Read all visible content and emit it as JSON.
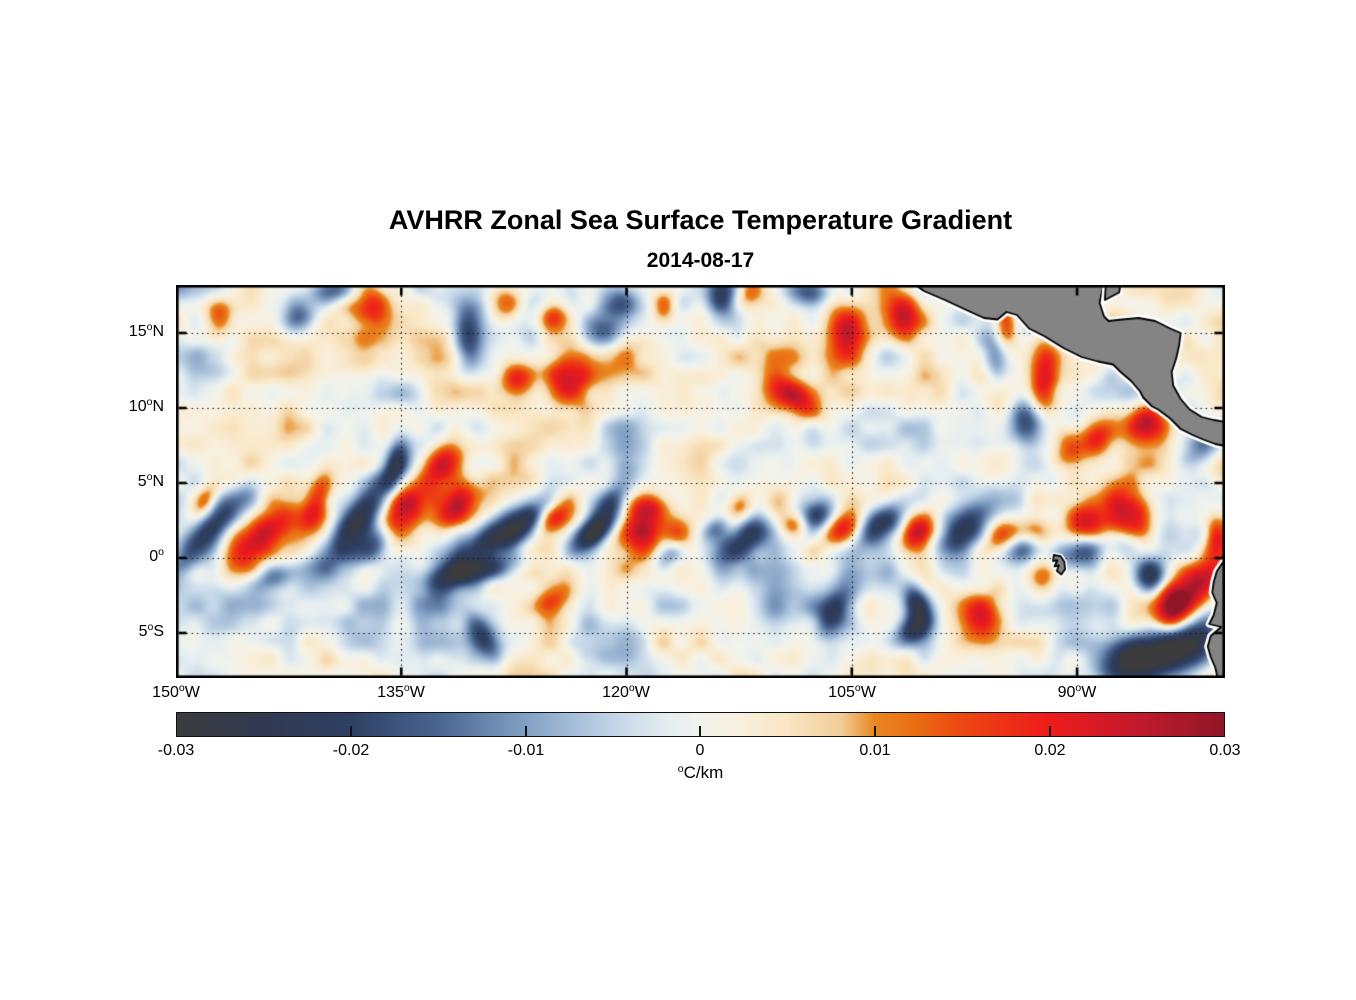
{
  "title": "AVHRR Zonal Sea Surface Temperature Gradient",
  "date": "2014-08-17",
  "axes": {
    "x": {
      "ticks": [
        {
          "num": "150",
          "sup": "o",
          "dir": "W",
          "lon": -150
        },
        {
          "num": "135",
          "sup": "o",
          "dir": "W",
          "lon": -135
        },
        {
          "num": "120",
          "sup": "o",
          "dir": "W",
          "lon": -120
        },
        {
          "num": "105",
          "sup": "o",
          "dir": "W",
          "lon": -105
        },
        {
          "num": "90",
          "sup": "o",
          "dir": "W",
          "lon": -90
        }
      ]
    },
    "y": {
      "ticks": [
        {
          "num": "15",
          "sup": "o",
          "dir": "N",
          "lat": 15
        },
        {
          "num": "10",
          "sup": "o",
          "dir": "N",
          "lat": 10
        },
        {
          "num": "5",
          "sup": "o",
          "dir": "N",
          "lat": 5
        },
        {
          "num": "0",
          "sup": "o",
          "dir": "",
          "lat": 0
        },
        {
          "num": "5",
          "sup": "o",
          "dir": "S",
          "lat": -5
        }
      ]
    }
  },
  "colorbar": {
    "ticks": [
      "-0.03",
      "-0.02",
      "-0.01",
      "0",
      "0.01",
      "0.02",
      "0.03"
    ],
    "unit_sup": "o",
    "unit": "C/km",
    "min": -0.03,
    "max": 0.03
  },
  "chart_data": {
    "type": "heatmap",
    "title": "AVHRR Zonal Sea Surface Temperature Gradient",
    "subtitle": "2014-08-17",
    "value_units": "degC/km",
    "lon_range": [
      -150,
      -80.15
    ],
    "lat_range": [
      -8.0,
      18.2
    ],
    "lon_ticks": [
      -150,
      -135,
      -120,
      -105,
      -90
    ],
    "lat_ticks": [
      15,
      10,
      5,
      0,
      -5
    ],
    "grid": "dotted black lines at tick latitudes and longitudes",
    "value_range": [
      -0.03,
      0.03
    ],
    "colormap_stops": [
      [
        -0.03,
        "#3b3b3d"
      ],
      [
        -0.025,
        "#303950"
      ],
      [
        -0.02,
        "#2e4064"
      ],
      [
        -0.015,
        "#4a6590"
      ],
      [
        -0.01,
        "#82a0c4"
      ],
      [
        -0.005,
        "#c2d5e7"
      ],
      [
        -0.002,
        "#e4edf0"
      ],
      [
        0,
        "#f1f3ec"
      ],
      [
        0.002,
        "#f8f0df"
      ],
      [
        0.005,
        "#f9e6c3"
      ],
      [
        0.008,
        "#f2cd9a"
      ],
      [
        0.01,
        "#e9871e"
      ],
      [
        0.0125,
        "#ea6b13"
      ],
      [
        0.015,
        "#ec4611"
      ],
      [
        0.02,
        "#ee1b1b"
      ],
      [
        0.025,
        "#c31a2d"
      ],
      [
        0.03,
        "#911627"
      ]
    ],
    "land_color": "#848484",
    "coast_halo_color": "#ffffff",
    "land_polygons": [
      [
        [
          -101.6,
          18.8
        ],
        [
          -100.2,
          17.8
        ],
        [
          -98.8,
          17.2
        ],
        [
          -97.3,
          16.5
        ],
        [
          -96.2,
          16.0
        ],
        [
          -95.3,
          15.9
        ],
        [
          -94.7,
          16.4
        ],
        [
          -94.0,
          16.2
        ],
        [
          -93.2,
          15.3
        ],
        [
          -92.2,
          14.8
        ],
        [
          -90.9,
          14.0
        ],
        [
          -89.7,
          13.4
        ],
        [
          -88.6,
          13.1
        ],
        [
          -87.6,
          12.9
        ],
        [
          -87.1,
          12.4
        ],
        [
          -86.4,
          11.8
        ],
        [
          -85.8,
          11.1
        ],
        [
          -85.6,
          10.7
        ],
        [
          -85.0,
          10.1
        ],
        [
          -84.6,
          9.9
        ],
        [
          -83.8,
          9.3
        ],
        [
          -83.1,
          8.6
        ],
        [
          -82.3,
          8.2
        ],
        [
          -81.6,
          7.9
        ],
        [
          -80.8,
          7.6
        ],
        [
          -80.3,
          7.5
        ],
        [
          -79.7,
          7.6
        ],
        [
          -79.7,
          9.0
        ],
        [
          -80.9,
          9.2
        ],
        [
          -81.7,
          9.4
        ],
        [
          -82.5,
          9.9
        ],
        [
          -83.1,
          10.6
        ],
        [
          -83.6,
          11.5
        ],
        [
          -83.7,
          12.4
        ],
        [
          -83.4,
          13.3
        ],
        [
          -83.2,
          14.2
        ],
        [
          -83.1,
          15.0
        ],
        [
          -83.8,
          15.3
        ],
        [
          -84.8,
          15.8
        ],
        [
          -85.9,
          16.0
        ],
        [
          -87.0,
          15.9
        ],
        [
          -87.9,
          15.8
        ],
        [
          -88.2,
          16.1
        ],
        [
          -88.5,
          17.0
        ],
        [
          -88.3,
          18.0
        ],
        [
          -88.45,
          18.8
        ]
      ],
      [
        [
          -88.05,
          18.8
        ],
        [
          -88.15,
          17.2
        ],
        [
          -87.2,
          17.7
        ],
        [
          -87.0,
          18.8
        ]
      ],
      [
        [
          -79.7,
          -0.1
        ],
        [
          -80.3,
          -0.3
        ],
        [
          -80.7,
          -0.9
        ],
        [
          -80.9,
          -1.6
        ],
        [
          -81.0,
          -2.3
        ],
        [
          -80.7,
          -3.0
        ],
        [
          -80.9,
          -3.8
        ],
        [
          -81.2,
          -4.4
        ],
        [
          -80.4,
          -4.6
        ],
        [
          -81.1,
          -5.2
        ],
        [
          -81.3,
          -5.9
        ],
        [
          -81.1,
          -6.6
        ],
        [
          -80.8,
          -7.3
        ],
        [
          -80.6,
          -8.2
        ],
        [
          -80.5,
          -8.6
        ],
        [
          -79.7,
          -8.6
        ]
      ],
      [
        [
          -91.55,
          0.2
        ],
        [
          -91.1,
          0.12
        ],
        [
          -90.85,
          -0.25
        ],
        [
          -90.8,
          -0.75
        ],
        [
          -91.05,
          -1.1
        ],
        [
          -91.35,
          -0.85
        ],
        [
          -91.2,
          -0.5
        ],
        [
          -91.5,
          -0.55
        ],
        [
          -91.3,
          -0.15
        ],
        [
          -91.6,
          -0.2
        ]
      ]
    ],
    "features_format": [
      "lon_deg",
      "lat_deg",
      "amplitude_degC_per_km",
      "sigma_along_deg",
      "sigma_across_deg",
      "rotation_deg_ccw_from_east"
    ],
    "features": [
      [
        -147.8,
        1.8,
        -0.026,
        2.6,
        0.75,
        48
      ],
      [
        -148.1,
        3.8,
        0.016,
        0.9,
        0.5,
        60
      ],
      [
        -144.6,
        1.2,
        0.02,
        2.2,
        0.8,
        45
      ],
      [
        -143.4,
        -1.3,
        -0.013,
        1.3,
        0.6,
        20
      ],
      [
        -140.7,
        3.6,
        0.02,
        1.6,
        0.6,
        70
      ],
      [
        -137.9,
        2.6,
        -0.028,
        2.8,
        0.8,
        52
      ],
      [
        -136.6,
        0.9,
        -0.02,
        1.6,
        0.7,
        40
      ],
      [
        -135.2,
        2.4,
        0.025,
        1.5,
        0.8,
        60
      ],
      [
        -135.0,
        3.9,
        0.014,
        1.0,
        0.6,
        0
      ],
      [
        -132.3,
        6.2,
        0.022,
        1.4,
        0.8,
        55
      ],
      [
        -135.4,
        6.3,
        -0.018,
        1.1,
        0.5,
        75
      ],
      [
        -131.3,
        3.4,
        0.018,
        1.4,
        0.7,
        50
      ],
      [
        -129.3,
        1.0,
        -0.028,
        2.6,
        0.85,
        40
      ],
      [
        -129.8,
        -0.9,
        -0.024,
        2.0,
        0.6,
        10
      ],
      [
        -129.5,
        -5.4,
        -0.016,
        1.2,
        0.6,
        -60
      ],
      [
        -126.9,
        2.2,
        -0.016,
        1.4,
        0.6,
        45
      ],
      [
        -124.6,
        2.8,
        0.014,
        1.1,
        0.6,
        50
      ],
      [
        -124.9,
        -2.8,
        0.012,
        1.3,
        0.7,
        30
      ],
      [
        -121.3,
        3.1,
        -0.026,
        1.7,
        0.7,
        55
      ],
      [
        -122.4,
        1.5,
        -0.02,
        1.3,
        0.6,
        35
      ],
      [
        -119.0,
        2.0,
        0.022,
        1.1,
        1.3,
        0
      ],
      [
        -118.4,
        3.4,
        0.012,
        0.8,
        0.6,
        0
      ],
      [
        -116.5,
        1.4,
        0.016,
        0.7,
        0.9,
        0
      ],
      [
        -117.2,
        0.3,
        -0.02,
        0.8,
        0.6,
        30
      ],
      [
        -113.9,
        2.2,
        -0.014,
        1.0,
        0.5,
        40
      ],
      [
        -111.4,
        1.8,
        -0.027,
        2.2,
        0.8,
        35
      ],
      [
        -112.6,
        3.2,
        0.016,
        1.0,
        0.6,
        45
      ],
      [
        -110.0,
        3.0,
        0.02,
        1.2,
        0.7,
        50
      ],
      [
        -108.8,
        2.2,
        0.018,
        0.8,
        0.6,
        0
      ],
      [
        -107.4,
        2.6,
        -0.022,
        1.1,
        0.7,
        45
      ],
      [
        -106.1,
        -3.6,
        -0.02,
        1.4,
        0.7,
        60
      ],
      [
        -105.5,
        2.0,
        0.02,
        1.0,
        0.7,
        40
      ],
      [
        -103.0,
        2.3,
        -0.024,
        1.5,
        0.8,
        40
      ],
      [
        -100.6,
        1.8,
        0.022,
        1.1,
        0.7,
        55
      ],
      [
        -100.6,
        -3.2,
        -0.024,
        1.0,
        0.6,
        -70
      ],
      [
        -100.9,
        -4.9,
        -0.02,
        1.0,
        0.6,
        40
      ],
      [
        -97.6,
        1.8,
        -0.022,
        1.6,
        0.8,
        45
      ],
      [
        -96.3,
        -4.0,
        0.02,
        0.9,
        1.1,
        0
      ],
      [
        -95.0,
        1.5,
        0.018,
        0.9,
        0.7,
        40
      ],
      [
        -93.3,
        0.8,
        -0.02,
        1.0,
        0.7,
        30
      ],
      [
        -92.7,
        1.5,
        0.02,
        0.8,
        0.8,
        0
      ],
      [
        -92.4,
        -1.3,
        0.02,
        0.7,
        1.0,
        0
      ],
      [
        -89.6,
        0.4,
        -0.022,
        1.2,
        0.8,
        20
      ],
      [
        -89.3,
        2.4,
        0.02,
        0.9,
        0.9,
        0
      ],
      [
        -87.0,
        3.0,
        0.016,
        0.8,
        1.2,
        0
      ],
      [
        -86.7,
        0.8,
        -0.014,
        0.8,
        0.8,
        0
      ],
      [
        -85.8,
        2.5,
        0.018,
        0.7,
        1.2,
        0
      ],
      [
        -85.0,
        -1.3,
        -0.02,
        0.9,
        0.9,
        0
      ],
      [
        -147.2,
        16.2,
        0.016,
        0.7,
        0.9,
        0
      ],
      [
        -141.7,
        16.3,
        -0.018,
        1.0,
        0.8,
        60
      ],
      [
        -139.5,
        17.9,
        -0.016,
        1.1,
        0.6,
        0
      ],
      [
        -137.2,
        16.9,
        0.02,
        0.9,
        1.1,
        0
      ],
      [
        -130.6,
        14.8,
        -0.018,
        0.7,
        1.5,
        0
      ],
      [
        -128.0,
        16.9,
        0.016,
        0.8,
        0.9,
        0
      ],
      [
        -127.3,
        12.0,
        0.018,
        0.8,
        0.8,
        0
      ],
      [
        -124.9,
        16.2,
        0.018,
        0.7,
        0.9,
        0
      ],
      [
        -124.0,
        11.7,
        0.026,
        1.0,
        1.2,
        0
      ],
      [
        -121.6,
        15.2,
        -0.018,
        0.9,
        1.0,
        0
      ],
      [
        -120.3,
        17.3,
        -0.016,
        0.8,
        0.9,
        0
      ],
      [
        -117.5,
        16.8,
        0.014,
        0.6,
        0.8,
        0
      ],
      [
        -113.5,
        17.6,
        -0.018,
        0.8,
        1.0,
        0
      ],
      [
        -111.8,
        17.9,
        0.016,
        0.8,
        0.8,
        0
      ],
      [
        -108.6,
        10.6,
        0.018,
        1.5,
        0.7,
        -40
      ],
      [
        -107.8,
        17.8,
        -0.018,
        1.0,
        0.7,
        0
      ],
      [
        -105.3,
        15.0,
        0.018,
        0.8,
        1.2,
        0
      ],
      [
        -101.5,
        16.2,
        0.02,
        0.8,
        1.0,
        0
      ],
      [
        -94.7,
        15.6,
        0.024,
        0.6,
        1.2,
        0
      ],
      [
        -95.3,
        13.8,
        -0.02,
        0.7,
        1.4,
        0
      ],
      [
        -92.1,
        12.0,
        0.022,
        0.7,
        2.0,
        0
      ],
      [
        -93.1,
        9.2,
        -0.016,
        0.8,
        1.1,
        0
      ],
      [
        -90.4,
        7.4,
        0.018,
        0.9,
        1.0,
        0
      ],
      [
        -88.6,
        8.0,
        0.014,
        0.7,
        0.8,
        0
      ],
      [
        -85.3,
        9.0,
        0.02,
        0.8,
        0.8,
        0
      ],
      [
        -81.5,
        7.5,
        -0.016,
        1.1,
        0.8,
        30
      ],
      [
        -82.0,
        -1.9,
        0.03,
        1.0,
        1.6,
        -55
      ],
      [
        -83.5,
        -3.6,
        0.022,
        0.8,
        1.0,
        0
      ],
      [
        -83.0,
        -6.0,
        -0.028,
        2.4,
        1.2,
        20
      ],
      [
        -86.5,
        -6.8,
        -0.022,
        1.6,
        1.0,
        10
      ],
      [
        -80.6,
        1.3,
        0.024,
        0.6,
        1.0,
        0
      ]
    ],
    "noise": {
      "seed": 7,
      "octaves": [
        {
          "nx": 28,
          "ny": 11,
          "amp": 0.006
        },
        {
          "nx": 56,
          "ny": 22,
          "amp": 0.0035
        },
        {
          "nx": 12,
          "ny": 5,
          "amp": 0.0045
        }
      ]
    }
  }
}
